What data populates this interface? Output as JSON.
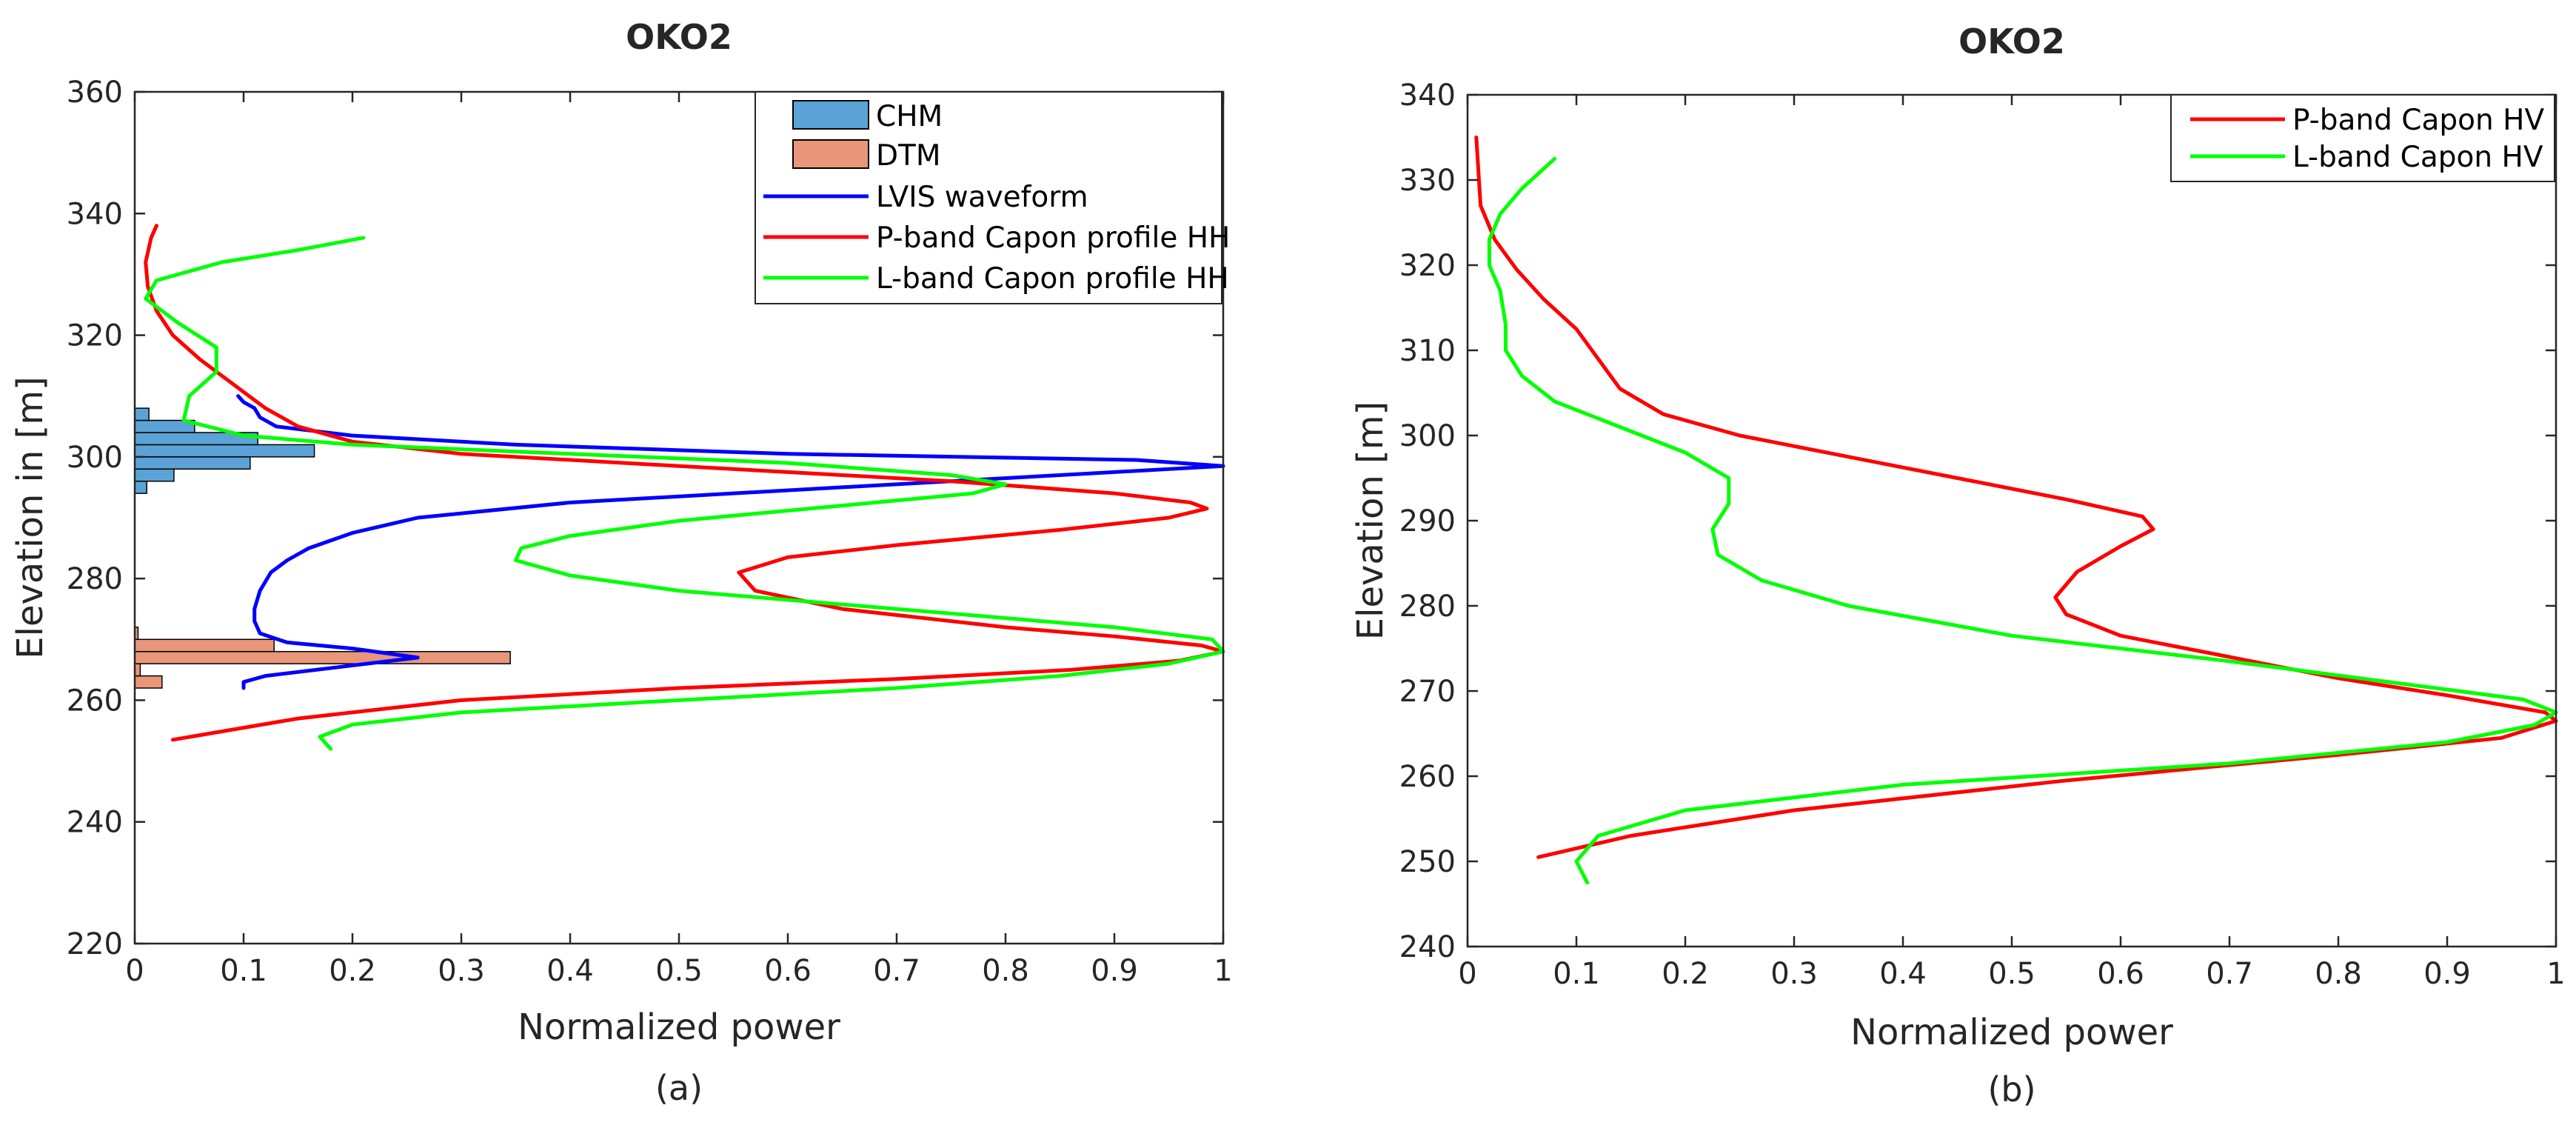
{
  "chart_data": [
    {
      "type": "line",
      "title": "OKO2",
      "caption": "(a)",
      "xlabel": "Normalized power",
      "ylabel": "Elevation in [m]",
      "xlim": [
        0,
        1
      ],
      "ylim": [
        220,
        360
      ],
      "xticks": [
        0,
        0.1,
        0.2,
        0.3,
        0.4,
        0.5,
        0.6,
        0.7,
        0.8,
        0.9,
        1
      ],
      "xtick_labels": [
        "0",
        "0.1",
        "0.2",
        "0.3",
        "0.4",
        "0.5",
        "0.6",
        "0.7",
        "0.8",
        "0.9",
        "1"
      ],
      "yticks": [
        220,
        240,
        260,
        280,
        300,
        320,
        340,
        360
      ],
      "ytick_labels": [
        "220",
        "240",
        "260",
        "280",
        "300",
        "320",
        "340",
        "360"
      ],
      "legend_position": "top-right",
      "histograms": [
        {
          "name": "CHM",
          "color": "#5ba3d6",
          "bin_width": 2,
          "bins": [
            {
              "y": 294,
              "v": 0.011
            },
            {
              "y": 296,
              "v": 0.036
            },
            {
              "y": 298,
              "v": 0.106
            },
            {
              "y": 300,
              "v": 0.165
            },
            {
              "y": 302,
              "v": 0.113
            },
            {
              "y": 304,
              "v": 0.055
            },
            {
              "y": 306,
              "v": 0.013
            }
          ]
        },
        {
          "name": "DTM",
          "color": "#e9967a",
          "bin_width": 2,
          "bins": [
            {
              "y": 262,
              "v": 0.025
            },
            {
              "y": 264,
              "v": 0.005
            },
            {
              "y": 266,
              "v": 0.345
            },
            {
              "y": 268,
              "v": 0.128
            },
            {
              "y": 270,
              "v": 0.003
            }
          ]
        }
      ],
      "series": [
        {
          "name": "LVIS waveform",
          "color": "#0000ff",
          "points": [
            [
              0.1,
              262
            ],
            [
              0.1,
              263
            ],
            [
              0.12,
              264
            ],
            [
              0.26,
              267
            ],
            [
              0.2,
              268.5
            ],
            [
              0.14,
              269.5
            ],
            [
              0.115,
              271
            ],
            [
              0.11,
              273
            ],
            [
              0.11,
              275
            ],
            [
              0.115,
              278
            ],
            [
              0.125,
              281
            ],
            [
              0.14,
              283
            ],
            [
              0.16,
              285
            ],
            [
              0.2,
              287.5
            ],
            [
              0.26,
              290
            ],
            [
              0.4,
              292.5
            ],
            [
              0.65,
              295
            ],
            [
              0.85,
              297
            ],
            [
              1.0,
              298.5
            ],
            [
              0.92,
              299.5
            ],
            [
              0.6,
              300.5
            ],
            [
              0.35,
              302
            ],
            [
              0.2,
              303.5
            ],
            [
              0.13,
              305
            ],
            [
              0.115,
              306.5
            ],
            [
              0.11,
              308
            ],
            [
              0.1,
              309
            ],
            [
              0.095,
              310
            ]
          ]
        },
        {
          "name": "P-band Capon profile HH",
          "color": "#ff0000",
          "points": [
            [
              0.035,
              253.5
            ],
            [
              0.15,
              257
            ],
            [
              0.3,
              260
            ],
            [
              0.5,
              262
            ],
            [
              0.7,
              263.5
            ],
            [
              0.86,
              265
            ],
            [
              0.96,
              266.5
            ],
            [
              1.0,
              268
            ],
            [
              0.98,
              269
            ],
            [
              0.9,
              270.5
            ],
            [
              0.8,
              272
            ],
            [
              0.65,
              275
            ],
            [
              0.57,
              278
            ],
            [
              0.555,
              281
            ],
            [
              0.6,
              283.5
            ],
            [
              0.7,
              285.5
            ],
            [
              0.85,
              288
            ],
            [
              0.95,
              290
            ],
            [
              0.985,
              291.5
            ],
            [
              0.97,
              292.5
            ],
            [
              0.9,
              294
            ],
            [
              0.75,
              296
            ],
            [
              0.5,
              298.5
            ],
            [
              0.3,
              300.5
            ],
            [
              0.2,
              302.5
            ],
            [
              0.15,
              305
            ],
            [
              0.12,
              308
            ],
            [
              0.09,
              312
            ],
            [
              0.06,
              316
            ],
            [
              0.035,
              320
            ],
            [
              0.02,
              324
            ],
            [
              0.012,
              328
            ],
            [
              0.01,
              332
            ],
            [
              0.015,
              336
            ],
            [
              0.02,
              338
            ]
          ]
        },
        {
          "name": "L-band Capon profile HH",
          "color": "#00ff00",
          "points": [
            [
              0.18,
              252
            ],
            [
              0.17,
              254
            ],
            [
              0.2,
              256
            ],
            [
              0.3,
              258
            ],
            [
              0.5,
              260
            ],
            [
              0.7,
              262
            ],
            [
              0.85,
              264
            ],
            [
              0.95,
              266
            ],
            [
              1.0,
              268
            ],
            [
              0.99,
              270
            ],
            [
              0.9,
              272
            ],
            [
              0.7,
              275
            ],
            [
              0.5,
              278
            ],
            [
              0.4,
              280.5
            ],
            [
              0.35,
              283
            ],
            [
              0.355,
              285
            ],
            [
              0.4,
              287
            ],
            [
              0.5,
              289.5
            ],
            [
              0.65,
              292
            ],
            [
              0.77,
              294
            ],
            [
              0.8,
              295.5
            ],
            [
              0.75,
              297
            ],
            [
              0.6,
              299
            ],
            [
              0.4,
              300.5
            ],
            [
              0.2,
              302
            ],
            [
              0.1,
              303.5
            ],
            [
              0.045,
              306
            ],
            [
              0.05,
              310
            ],
            [
              0.075,
              314
            ],
            [
              0.075,
              318
            ],
            [
              0.04,
              322
            ],
            [
              0.01,
              326
            ],
            [
              0.02,
              329
            ],
            [
              0.08,
              332
            ],
            [
              0.15,
              334
            ],
            [
              0.21,
              336
            ]
          ]
        }
      ]
    },
    {
      "type": "line",
      "title": "OKO2",
      "caption": "(b)",
      "xlabel": "Normalized power",
      "ylabel": "Elevation [m]",
      "xlim": [
        0,
        1
      ],
      "ylim": [
        240,
        340
      ],
      "xticks": [
        0,
        0.1,
        0.2,
        0.3,
        0.4,
        0.5,
        0.6,
        0.7,
        0.8,
        0.9,
        1
      ],
      "xtick_labels": [
        "0",
        "0.1",
        "0.2",
        "0.3",
        "0.4",
        "0.5",
        "0.6",
        "0.7",
        "0.8",
        "0.9",
        "1"
      ],
      "yticks": [
        240,
        250,
        260,
        270,
        280,
        290,
        300,
        310,
        320,
        330,
        340
      ],
      "ytick_labels": [
        "240",
        "250",
        "260",
        "270",
        "280",
        "290",
        "300",
        "310",
        "320",
        "330",
        "340"
      ],
      "legend_position": "top-right",
      "histograms": [],
      "series": [
        {
          "name": "P-band Capon HV",
          "color": "#ff0000",
          "points": [
            [
              0.065,
              250.5
            ],
            [
              0.15,
              253
            ],
            [
              0.3,
              256
            ],
            [
              0.55,
              259.5
            ],
            [
              0.8,
              262.5
            ],
            [
              0.95,
              264.5
            ],
            [
              1.0,
              266.5
            ],
            [
              0.99,
              267.5
            ],
            [
              0.9,
              269.5
            ],
            [
              0.8,
              271.5
            ],
            [
              0.7,
              274
            ],
            [
              0.6,
              276.5
            ],
            [
              0.55,
              279
            ],
            [
              0.54,
              281
            ],
            [
              0.56,
              284
            ],
            [
              0.6,
              287
            ],
            [
              0.63,
              289
            ],
            [
              0.62,
              290.5
            ],
            [
              0.55,
              292.5
            ],
            [
              0.45,
              295
            ],
            [
              0.35,
              297.5
            ],
            [
              0.25,
              300
            ],
            [
              0.18,
              302.5
            ],
            [
              0.14,
              305.5
            ],
            [
              0.12,
              309
            ],
            [
              0.1,
              312.5
            ],
            [
              0.07,
              316
            ],
            [
              0.045,
              319.5
            ],
            [
              0.025,
              323
            ],
            [
              0.012,
              327
            ],
            [
              0.01,
              331
            ],
            [
              0.008,
              335
            ]
          ]
        },
        {
          "name": "L-band Capon HV",
          "color": "#00ff00",
          "points": [
            [
              0.11,
              247.5
            ],
            [
              0.1,
              250
            ],
            [
              0.12,
              253
            ],
            [
              0.2,
              256
            ],
            [
              0.4,
              259
            ],
            [
              0.7,
              261.5
            ],
            [
              0.9,
              264
            ],
            [
              0.98,
              266
            ],
            [
              1.0,
              267.5
            ],
            [
              0.97,
              269
            ],
            [
              0.85,
              271
            ],
            [
              0.7,
              273.5
            ],
            [
              0.5,
              276.5
            ],
            [
              0.35,
              280
            ],
            [
              0.27,
              283
            ],
            [
              0.23,
              286
            ],
            [
              0.225,
              289
            ],
            [
              0.24,
              292
            ],
            [
              0.24,
              295
            ],
            [
              0.2,
              298
            ],
            [
              0.14,
              301
            ],
            [
              0.08,
              304
            ],
            [
              0.05,
              307
            ],
            [
              0.035,
              310
            ],
            [
              0.035,
              313
            ],
            [
              0.03,
              317
            ],
            [
              0.02,
              320
            ],
            [
              0.02,
              323
            ],
            [
              0.03,
              326
            ],
            [
              0.05,
              329
            ],
            [
              0.08,
              332.5
            ]
          ]
        }
      ]
    }
  ]
}
